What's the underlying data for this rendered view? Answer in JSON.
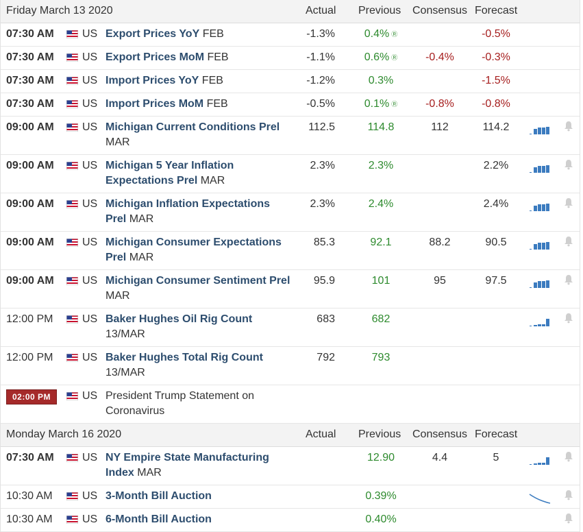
{
  "days": [
    {
      "date": "Friday March 13 2020",
      "headers": {
        "actual": "Actual",
        "previous": "Previous",
        "consensus": "Consensus",
        "forecast": "Forecast"
      },
      "events": [
        {
          "time": "07:30 AM",
          "time_style": "bold",
          "country": "US",
          "name_bold": "Export Prices YoY",
          "name_rest": " FEB",
          "actual": "-1.3%",
          "previous": "0.4%",
          "revised": true,
          "consensus": "",
          "forecast": "-0.5%",
          "forecast_color": "red",
          "chart": "none",
          "bell": false
        },
        {
          "time": "07:30 AM",
          "time_style": "bold",
          "country": "US",
          "name_bold": "Export Prices MoM",
          "name_rest": " FEB",
          "actual": "-1.1%",
          "previous": "0.6%",
          "revised": true,
          "consensus": "-0.4%",
          "consensus_color": "red",
          "forecast": "-0.3%",
          "forecast_color": "red",
          "chart": "none",
          "bell": false
        },
        {
          "time": "07:30 AM",
          "time_style": "bold",
          "country": "US",
          "name_bold": "Import Prices YoY",
          "name_rest": " FEB",
          "actual": "-1.2%",
          "previous": "0.3%",
          "revised": false,
          "consensus": "",
          "forecast": "-1.5%",
          "forecast_color": "red",
          "chart": "none",
          "bell": false
        },
        {
          "time": "07:30 AM",
          "time_style": "bold",
          "country": "US",
          "name_bold": "Import Prices MoM",
          "name_rest": " FEB",
          "actual": "-0.5%",
          "previous": "0.1%",
          "revised": true,
          "consensus": "-0.8%",
          "consensus_color": "red",
          "forecast": "-0.8%",
          "forecast_color": "red",
          "chart": "none",
          "bell": false
        },
        {
          "time": "09:00 AM",
          "time_style": "bold",
          "country": "US",
          "name_bold": "Michigan Current Conditions Prel",
          "name_rest": " MAR",
          "actual": "112.5",
          "previous": "114.8",
          "revised": false,
          "consensus": "112",
          "forecast": "114.2",
          "chart": "bars",
          "bell": true
        },
        {
          "time": "09:00 AM",
          "time_style": "bold",
          "country": "US",
          "name_bold": "Michigan 5 Year Inflation Expectations Prel",
          "name_rest": " MAR",
          "actual": "2.3%",
          "previous": "2.3%",
          "revised": false,
          "consensus": "",
          "forecast": "2.2%",
          "chart": "bars",
          "bell": true
        },
        {
          "time": "09:00 AM",
          "time_style": "bold",
          "country": "US",
          "name_bold": "Michigan Inflation Expectations Prel",
          "name_rest": " MAR",
          "actual": "2.3%",
          "previous": "2.4%",
          "revised": false,
          "consensus": "",
          "forecast": "2.4%",
          "chart": "bars",
          "bell": true
        },
        {
          "time": "09:00 AM",
          "time_style": "bold",
          "country": "US",
          "name_bold": "Michigan Consumer Expectations Prel",
          "name_rest": " MAR",
          "actual": "85.3",
          "previous": "92.1",
          "revised": false,
          "consensus": "88.2",
          "forecast": "90.5",
          "chart": "bars",
          "bell": true
        },
        {
          "time": "09:00 AM",
          "time_style": "bold",
          "country": "US",
          "name_bold": "Michigan Consumer Sentiment Prel",
          "name_rest": " MAR",
          "actual": "95.9",
          "previous": "101",
          "revised": false,
          "consensus": "95",
          "forecast": "97.5",
          "chart": "bars",
          "bell": true
        },
        {
          "time": "12:00 PM",
          "time_style": "normal",
          "country": "US",
          "name_bold": "Baker Hughes Oil Rig Count",
          "name_rest": " 13/MAR",
          "actual": "683",
          "previous": "682",
          "revised": false,
          "consensus": "",
          "forecast": "",
          "chart": "bars-low",
          "bell": true
        },
        {
          "time": "12:00 PM",
          "time_style": "normal",
          "country": "US",
          "name_bold": "Baker Hughes Total Rig Count",
          "name_rest": " 13/MAR",
          "actual": "792",
          "previous": "793",
          "revised": false,
          "consensus": "",
          "forecast": "",
          "chart": "none",
          "bell": false
        },
        {
          "time": "02:00 PM",
          "time_style": "badge",
          "country": "US",
          "name_bold": "",
          "name_rest": "President Trump Statement on Coronavirus",
          "actual": "",
          "previous": "",
          "revised": false,
          "consensus": "",
          "forecast": "",
          "chart": "none",
          "bell": false
        }
      ]
    },
    {
      "date": "Monday March 16 2020",
      "headers": {
        "actual": "Actual",
        "previous": "Previous",
        "consensus": "Consensus",
        "forecast": "Forecast"
      },
      "events": [
        {
          "time": "07:30 AM",
          "time_style": "bold",
          "country": "US",
          "name_bold": "NY Empire State Manufacturing Index",
          "name_rest": " MAR",
          "actual": "",
          "previous": "12.90",
          "revised": false,
          "consensus": "4.4",
          "forecast": "5",
          "chart": "bars-low",
          "bell": true
        },
        {
          "time": "10:30 AM",
          "time_style": "normal",
          "country": "US",
          "name_bold": "3-Month Bill Auction",
          "name_rest": "",
          "actual": "",
          "previous": "0.39%",
          "revised": false,
          "consensus": "",
          "forecast": "",
          "chart": "line",
          "bell": true
        },
        {
          "time": "10:30 AM",
          "time_style": "normal",
          "country": "US",
          "name_bold": "6-Month Bill Auction",
          "name_rest": "",
          "actual": "",
          "previous": "0.40%",
          "revised": false,
          "consensus": "",
          "forecast": "",
          "chart": "none",
          "bell": true
        }
      ]
    }
  ],
  "colors": {
    "positive": "#2d8a2d",
    "negative": "#a61e1e",
    "event_link": "#2d4d6e",
    "badge": "#a52a2a",
    "chart": "#3b7bbf"
  },
  "icons": {
    "flag": "us-flag-icon",
    "chart": "sparkline-chart-icon",
    "bell": "bell-alert-icon",
    "revised": "revised-marker-icon"
  }
}
